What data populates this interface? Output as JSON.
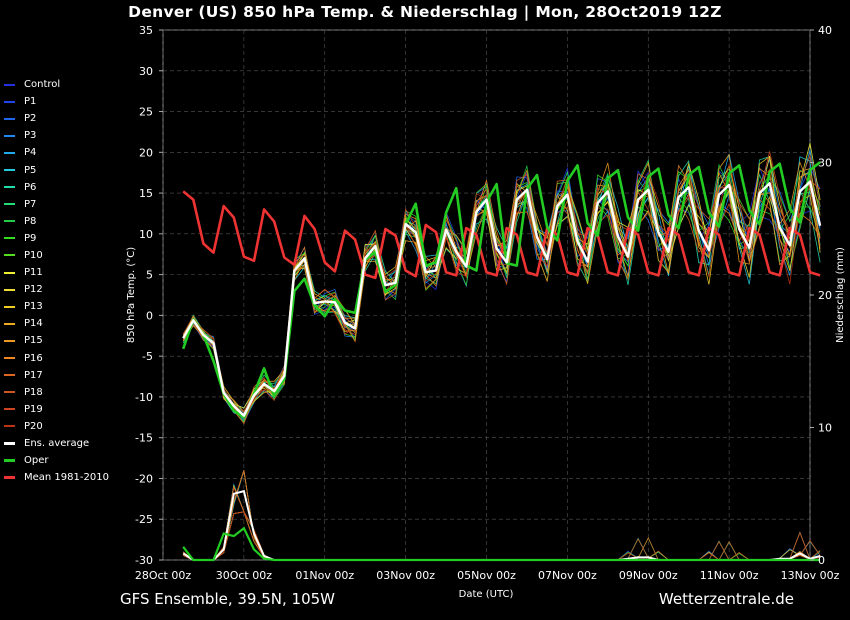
{
  "title": "Denver  (US)  850 hPa Temp. & Niederschlag | Mon, 28Oct2019 12Z",
  "footer": {
    "left": "GFS Ensemble, 39.5N, 105W",
    "right": "Wetterzentrale.de"
  },
  "colors": {
    "background": "#000000",
    "grid": "#555555",
    "ens_average": "#ffffff",
    "oper": "#22cc22",
    "mean": "#ee3333"
  },
  "legend": [
    {
      "label": "Control",
      "color": "#2233dd"
    },
    {
      "label": "P1",
      "color": "#2244ee"
    },
    {
      "label": "P2",
      "color": "#2266ee"
    },
    {
      "label": "P3",
      "color": "#2288ee"
    },
    {
      "label": "P4",
      "color": "#22aaee"
    },
    {
      "label": "P5",
      "color": "#22ccdd"
    },
    {
      "label": "P6",
      "color": "#22ddaa"
    },
    {
      "label": "P7",
      "color": "#22dd77"
    },
    {
      "label": "P8",
      "color": "#22cc44"
    },
    {
      "label": "P9",
      "color": "#33dd22"
    },
    {
      "label": "P10",
      "color": "#55dd22"
    },
    {
      "label": "P11",
      "color": "#eeee33"
    },
    {
      "label": "P12",
      "color": "#eedd33"
    },
    {
      "label": "P13",
      "color": "#eecc22"
    },
    {
      "label": "P14",
      "color": "#eeaa22"
    },
    {
      "label": "P15",
      "color": "#ee9922"
    },
    {
      "label": "P16",
      "color": "#ee8822"
    },
    {
      "label": "P17",
      "color": "#dd6622"
    },
    {
      "label": "P18",
      "color": "#cc5522"
    },
    {
      "label": "P19",
      "color": "#cc4422"
    },
    {
      "label": "P20",
      "color": "#bb3311"
    },
    {
      "label": "Ens. average",
      "color": "#ffffff"
    },
    {
      "label": "Oper",
      "color": "#22cc22"
    },
    {
      "label": "Mean 1981-2010",
      "color": "#ee3333"
    }
  ],
  "chart_data": {
    "type": "line",
    "title": "Denver  (US)  850 hPa Temp. & Niederschlag | Mon, 28Oct2019 12Z",
    "xlabel": "Date (UTC)",
    "ylabel": "850 hPa Temp. (°C)",
    "y2label": "Niederschlag (mm)",
    "x_start_days": 0.5,
    "x_step_days": 0.25,
    "xlim_days": [
      0,
      16
    ],
    "ylim": [
      -30,
      35
    ],
    "y2lim": [
      0,
      40
    ],
    "grid": true,
    "x_ticks": [
      {
        "day": 0,
        "label": "28Oct 00z"
      },
      {
        "day": 2,
        "label": "30Oct 00z"
      },
      {
        "day": 4,
        "label": "01Nov 00z"
      },
      {
        "day": 6,
        "label": "03Nov 00z"
      },
      {
        "day": 8,
        "label": "05Nov 00z"
      },
      {
        "day": 10,
        "label": "07Nov 00z"
      },
      {
        "day": 12,
        "label": "09Nov 00z"
      },
      {
        "day": 14,
        "label": "11Nov 00z"
      },
      {
        "day": 16,
        "label": "13Nov 00z"
      }
    ],
    "y_ticks": [
      -30,
      -25,
      -20,
      -15,
      -10,
      -5,
      0,
      5,
      10,
      15,
      20,
      25,
      30,
      35
    ],
    "y2_ticks": [
      0,
      10,
      20,
      30,
      40
    ],
    "series": [
      {
        "name": "Mean 1981-2010",
        "values": [
          15.2,
          14.2,
          8.8,
          7.7,
          13.4,
          12.0,
          7.2,
          6.7,
          13.0,
          11.5,
          7.1,
          6.2,
          12.2,
          10.6,
          6.5,
          5.4,
          10.4,
          9.3,
          5.0,
          4.6,
          10.6,
          9.8,
          5.5,
          4.8,
          11.1,
          10.2,
          5.3,
          4.9,
          10.7,
          9.9,
          5.3,
          4.9,
          10.7,
          9.9,
          5.3,
          4.9,
          10.7,
          9.9,
          5.3,
          4.9,
          10.7,
          9.9,
          5.3,
          4.9,
          10.7,
          9.9,
          5.3,
          4.9,
          10.7,
          9.9,
          5.3,
          4.9,
          10.7,
          9.9,
          5.3,
          4.9,
          10.7,
          9.9,
          5.3,
          4.9,
          10.7,
          9.9,
          5.3,
          4.9
        ]
      },
      {
        "name": "Ens. average",
        "values": [
          -2.8,
          -0.6,
          -2.4,
          -3.4,
          -9.5,
          -11.1,
          -12.3,
          -9.8,
          -8.4,
          -9.3,
          -7.4,
          5.5,
          7.0,
          1.5,
          1.7,
          1.6,
          -0.9,
          -1.6,
          7.0,
          8.5,
          3.7,
          4.0,
          11.2,
          10.2,
          5.3,
          5.5,
          10.5,
          7.8,
          6.0,
          12.7,
          14.2,
          8.2,
          6.5,
          14.2,
          15.4,
          9.6,
          6.9,
          13.4,
          14.8,
          9.1,
          6.6,
          13.8,
          15.2,
          9.7,
          7.2,
          14.2,
          15.4,
          10.2,
          7.8,
          14.5,
          15.7,
          10.4,
          8.0,
          14.8,
          16.0,
          10.6,
          8.3,
          15.0,
          16.2,
          10.8,
          8.6,
          15.2,
          16.4,
          11.0
        ]
      },
      {
        "name": "Oper",
        "values": [
          -4.1,
          -0.5,
          -2.4,
          -5.6,
          -9.6,
          -11.7,
          -12.5,
          -9.6,
          -6.5,
          -9.9,
          -7.8,
          3.0,
          4.5,
          1.2,
          -0.1,
          2.0,
          0.6,
          0.3,
          6.8,
          7.8,
          2.9,
          3.7,
          11.2,
          13.7,
          6.1,
          6.5,
          12.6,
          15.6,
          6.1,
          5.5,
          13.9,
          16.1,
          6.4,
          6.1,
          15.5,
          17.2,
          10.8,
          9.2,
          16.5,
          18.4,
          11.3,
          9.8,
          16.8,
          17.8,
          12.0,
          10.4,
          17.0,
          18.0,
          12.3,
          10.7,
          17.2,
          18.2,
          12.6,
          10.9,
          17.4,
          18.4,
          12.9,
          11.2,
          17.6,
          18.6,
          13.1,
          11.4,
          17.8,
          18.8
        ]
      }
    ],
    "precip_series": [
      {
        "name": "Ens. average",
        "values": [
          0.5,
          0,
          0,
          0,
          0.8,
          5.0,
          5.2,
          2.0,
          0.3,
          0,
          0,
          0,
          0,
          0,
          0,
          0,
          0,
          0,
          0,
          0,
          0,
          0,
          0,
          0,
          0,
          0,
          0,
          0,
          0,
          0,
          0,
          0,
          0,
          0,
          0,
          0,
          0,
          0,
          0,
          0,
          0,
          0,
          0,
          0,
          0.1,
          0.2,
          0.2,
          0,
          0,
          0,
          0,
          0,
          0,
          0,
          0,
          0,
          0,
          0,
          0,
          0.1,
          0.1,
          0.5,
          0.1,
          0.3
        ]
      },
      {
        "name": "Oper",
        "values": [
          1.0,
          0,
          0,
          0,
          2.0,
          1.8,
          2.4,
          0.8,
          0.1,
          0,
          0,
          0,
          0,
          0,
          0,
          0,
          0,
          0,
          0,
          0,
          0,
          0,
          0,
          0,
          0,
          0,
          0,
          0,
          0,
          0,
          0,
          0,
          0,
          0,
          0,
          0,
          0,
          0,
          0,
          0,
          0,
          0,
          0,
          0,
          0,
          0,
          0,
          0,
          0,
          0,
          0,
          0,
          0,
          0,
          0,
          0,
          0,
          0,
          0,
          0,
          0,
          0,
          0,
          0
        ]
      }
    ]
  }
}
